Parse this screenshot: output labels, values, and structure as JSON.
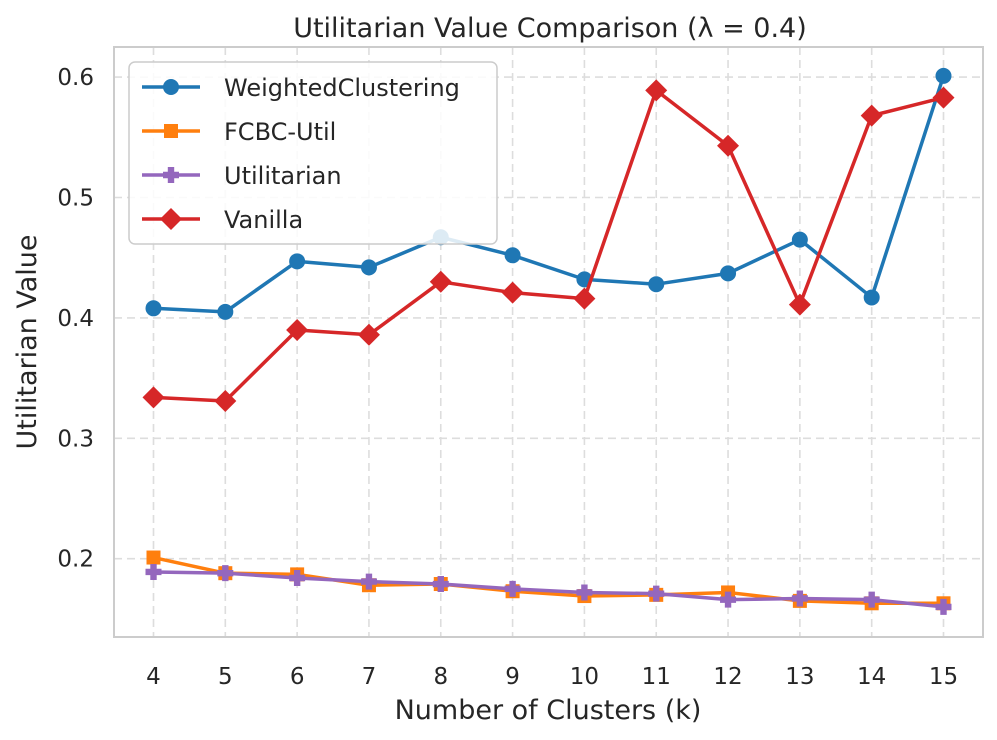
{
  "chart_data": {
    "type": "line",
    "title": "Utilitarian Value Comparison (λ = 0.4)",
    "xlabel": "Number of Clusters (k)",
    "ylabel": "Utilitarian Value",
    "x": [
      4,
      5,
      6,
      7,
      8,
      9,
      10,
      11,
      12,
      13,
      14,
      15
    ],
    "x_tick_labels": [
      "4",
      "5",
      "6",
      "7",
      "8",
      "9",
      "10",
      "11",
      "12",
      "13",
      "14",
      "15"
    ],
    "y_ticks": [
      0.2,
      0.3,
      0.4,
      0.5,
      0.6
    ],
    "y_tick_labels": [
      "0.2",
      "0.3",
      "0.4",
      "0.5",
      "0.6"
    ],
    "ylim": [
      0.135,
      0.625
    ],
    "xlim": [
      3.45,
      15.55
    ],
    "grid": true,
    "legend_position": "top-left",
    "series": [
      {
        "name": "WeightedClustering",
        "color": "#1f77b4",
        "marker": "circle",
        "values": [
          0.408,
          0.405,
          0.447,
          0.442,
          0.467,
          0.452,
          0.432,
          0.428,
          0.437,
          0.465,
          0.417,
          0.601
        ]
      },
      {
        "name": "FCBC-Util",
        "color": "#ff7f0e",
        "marker": "square",
        "values": [
          0.201,
          0.188,
          0.187,
          0.178,
          0.179,
          0.173,
          0.169,
          0.17,
          0.172,
          0.165,
          0.163,
          0.163
        ]
      },
      {
        "name": "Utilitarian",
        "color": "#9467bd",
        "marker": "plus",
        "values": [
          0.189,
          0.188,
          0.184,
          0.181,
          0.179,
          0.175,
          0.172,
          0.171,
          0.166,
          0.167,
          0.166,
          0.16
        ]
      },
      {
        "name": "Vanilla",
        "color": "#d62728",
        "marker": "diamond",
        "values": [
          0.334,
          0.331,
          0.39,
          0.386,
          0.43,
          0.421,
          0.416,
          0.589,
          0.543,
          0.411,
          0.568,
          0.583
        ]
      }
    ]
  }
}
